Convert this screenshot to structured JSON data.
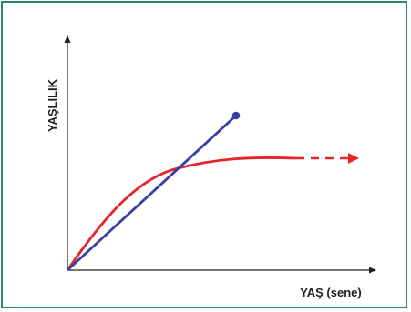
{
  "diagram": {
    "y_axis_label": "YAŞLILIK",
    "x_axis_label": "YAŞ (sene)",
    "colors": {
      "frame": "#27886e",
      "axis": "#222222",
      "linear_curve": "#3a3fa5",
      "plateau_curve": "#e5252a"
    }
  }
}
